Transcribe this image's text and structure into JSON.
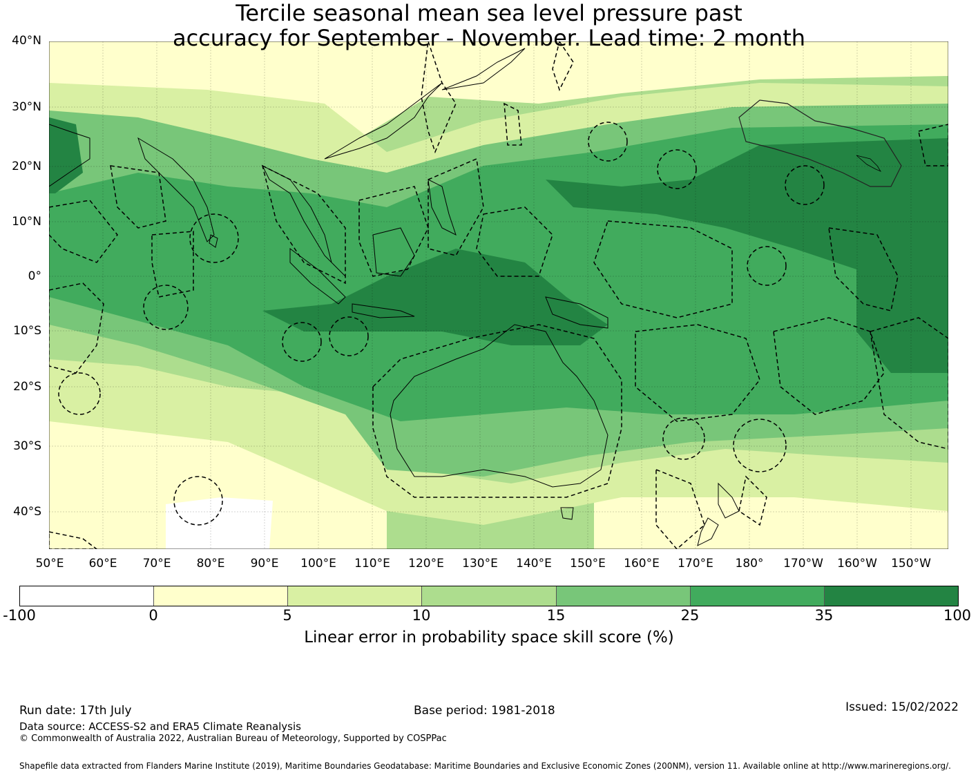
{
  "title": {
    "line1": "Tercile seasonal mean sea level pressure past",
    "line2": "accuracy for September - November. Lead time: 2 month"
  },
  "axes": {
    "lat_labels": [
      "40°N",
      "30°N",
      "20°N",
      "10°N",
      "0°",
      "10°S",
      "20°S",
      "30°S",
      "40°S"
    ],
    "lon_labels": [
      "50°E",
      "60°E",
      "70°E",
      "80°E",
      "90°E",
      "100°E",
      "110°E",
      "120°E",
      "130°E",
      "140°E",
      "150°E",
      "160°E",
      "170°E",
      "180°",
      "170°W",
      "160°W",
      "150°W"
    ]
  },
  "colorbar": {
    "label": "Linear error in probability space skill score (%)",
    "ticks": [
      "-100",
      "0",
      "5",
      "10",
      "15",
      "25",
      "35",
      "100"
    ],
    "colors": [
      "#ffffff",
      "#ffffcc",
      "#d9f0a3",
      "#addd8e",
      "#78c679",
      "#41ab5d",
      "#238443"
    ]
  },
  "footer": {
    "run_date": "Run date: 17th July",
    "base_period": "Base period: 1981-2018",
    "issued": "Issued: 15/02/2022",
    "data_source": "Data source: ACCESS-S2 and ERA5 Climate Reanalysis",
    "copyright": "© Commonwealth of Australia 2022, Australian Bureau of Meteorology, Supported by COSPPac",
    "shapefile": "Shapefile data extracted from Flanders Marine Institute (2019), Maritime Boundaries Geodatabase: Maritime Boundaries and Exclusive Economic Zones (200NM), version 11. Available online at http://www.marineregions.org/."
  }
}
